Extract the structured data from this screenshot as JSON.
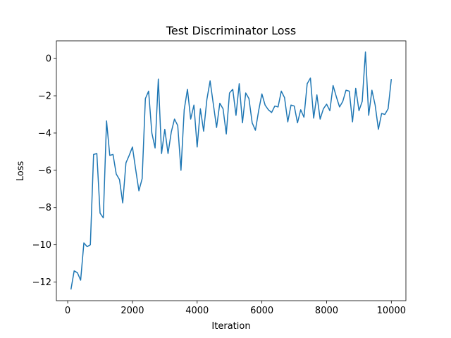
{
  "chart_data": {
    "type": "line",
    "title": "Test Discriminator Loss",
    "xlabel": "Iteration",
    "ylabel": "Loss",
    "xlim": [
      -350,
      10450
    ],
    "ylim": [
      -13.0,
      0.95
    ],
    "xticks": [
      0,
      2000,
      4000,
      6000,
      8000,
      10000
    ],
    "yticks": [
      0,
      -2,
      -4,
      -6,
      -8,
      -10,
      -12
    ],
    "grid": false,
    "line_color": "#1f77b4",
    "series": [
      {
        "x": [
          100,
          200,
          300,
          400,
          500,
          600,
          700,
          800,
          900,
          1000,
          1100,
          1200,
          1300,
          1400,
          1500,
          1600,
          1700,
          1800,
          1900,
          2000,
          2100,
          2200,
          2300,
          2400,
          2500,
          2600,
          2700,
          2800,
          2900,
          3000,
          3100,
          3200,
          3300,
          3400,
          3500,
          3600,
          3700,
          3800,
          3900,
          4000,
          4100,
          4200,
          4300,
          4400,
          4500,
          4600,
          4700,
          4800,
          4900,
          5000,
          5100,
          5200,
          5300,
          5400,
          5500,
          5600,
          5700,
          5800,
          5900,
          6000,
          6100,
          6200,
          6300,
          6400,
          6500,
          6600,
          6700,
          6800,
          6900,
          7000,
          7100,
          7200,
          7300,
          7400,
          7500,
          7600,
          7700,
          7800,
          7900,
          8000,
          8100,
          8200,
          8300,
          8400,
          8500,
          8600,
          8700,
          8800,
          8900,
          9000,
          9100,
          9200,
          9300,
          9400,
          9500,
          9600,
          9700,
          9800,
          9900,
          10000
        ],
        "values": [
          -12.4,
          -11.4,
          -11.5,
          -11.9,
          -9.9,
          -10.1,
          -10.0,
          -5.15,
          -5.1,
          -8.3,
          -8.55,
          -3.35,
          -5.2,
          -5.15,
          -6.2,
          -6.5,
          -7.75,
          -5.6,
          -5.2,
          -4.75,
          -5.95,
          -7.1,
          -6.45,
          -2.15,
          -1.75,
          -4.0,
          -4.8,
          -1.1,
          -5.1,
          -3.8,
          -5.1,
          -3.95,
          -3.25,
          -3.6,
          -6.0,
          -2.75,
          -1.65,
          -3.25,
          -2.5,
          -4.75,
          -2.7,
          -3.9,
          -2.2,
          -1.2,
          -2.45,
          -3.7,
          -2.4,
          -2.7,
          -4.05,
          -1.85,
          -1.65,
          -3.05,
          -1.35,
          -3.45,
          -1.85,
          -2.15,
          -3.45,
          -3.85,
          -2.8,
          -1.9,
          -2.5,
          -2.75,
          -2.9,
          -2.55,
          -2.6,
          -1.75,
          -2.1,
          -3.4,
          -2.5,
          -2.55,
          -3.45,
          -2.75,
          -3.15,
          -1.35,
          -1.05,
          -3.2,
          -1.95,
          -3.25,
          -2.7,
          -2.45,
          -2.8,
          -1.45,
          -2.05,
          -2.6,
          -2.3,
          -1.7,
          -1.75,
          -3.4,
          -1.6,
          -2.8,
          -2.3,
          0.35,
          -3.05,
          -1.7,
          -2.5,
          -3.8,
          -2.95,
          -3.0,
          -2.7,
          -1.1
        ]
      }
    ]
  }
}
